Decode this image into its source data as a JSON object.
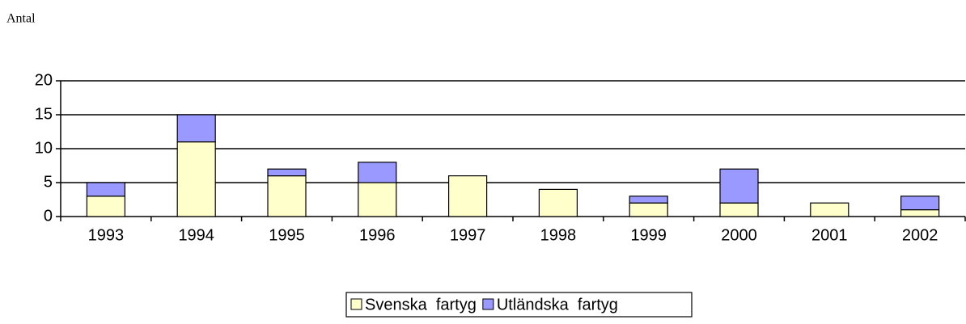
{
  "chart_data": {
    "type": "bar",
    "stacked": true,
    "y_label": "Antal",
    "categories": [
      "1993",
      "1994",
      "1995",
      "1996",
      "1997",
      "1998",
      "1999",
      "2000",
      "2001",
      "2002"
    ],
    "series": [
      {
        "name": "Svenska  fartyg",
        "color": "#ffffcc",
        "values": [
          3,
          11,
          6,
          5,
          6,
          4,
          2,
          2,
          2,
          1
        ]
      },
      {
        "name": "Utländska  fartyg",
        "color": "#9999ff",
        "values": [
          2,
          4,
          1,
          3,
          0,
          0,
          1,
          5,
          0,
          2
        ]
      }
    ],
    "ylim": [
      0,
      20
    ],
    "yticks": [
      0,
      5,
      10,
      15,
      20
    ],
    "grid": true,
    "legend": "bottom"
  }
}
